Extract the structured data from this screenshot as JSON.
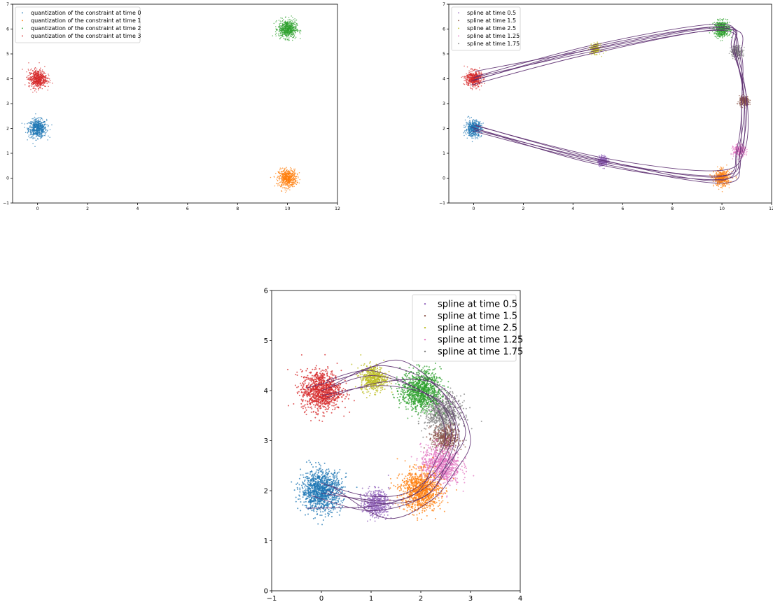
{
  "chart_data": [
    {
      "type": "scatter",
      "title": "",
      "xlabel": "",
      "ylabel": "",
      "xlim": [
        -1,
        12
      ],
      "ylim": [
        -1,
        7
      ],
      "xticks": [
        0,
        2,
        4,
        6,
        8,
        10,
        12
      ],
      "yticks": [
        -1,
        0,
        1,
        2,
        3,
        4,
        5,
        6,
        7
      ],
      "legend_position": "upper-left",
      "series": [
        {
          "name": "quantization of the constraint at time 0",
          "color": "#1f77b4",
          "center": [
            0,
            2
          ],
          "spread": 0.18,
          "count": 600
        },
        {
          "name": "quantization of the constraint at time 1",
          "color": "#ff7f0e",
          "center": [
            10,
            0
          ],
          "spread": 0.18,
          "count": 600
        },
        {
          "name": "quantization of the constraint at time 2",
          "color": "#2ca02c",
          "center": [
            10,
            6
          ],
          "spread": 0.18,
          "count": 600
        },
        {
          "name": "quantization of the constraint at time 3",
          "color": "#d62728",
          "center": [
            0,
            4
          ],
          "spread": 0.18,
          "count": 600
        }
      ],
      "splines": []
    },
    {
      "type": "scatter",
      "title": "",
      "xlabel": "",
      "ylabel": "",
      "xlim": [
        -1,
        12
      ],
      "ylim": [
        -1,
        7
      ],
      "xticks": [
        0,
        2,
        4,
        6,
        8,
        10,
        12
      ],
      "yticks": [
        -1,
        0,
        1,
        2,
        3,
        4,
        5,
        6,
        7
      ],
      "legend_position": "upper-left",
      "series": [
        {
          "name": "spline at time 0.5",
          "color": "#9467bd",
          "center": [
            5.2,
            0.7
          ],
          "spread": 0.1,
          "count": 300
        },
        {
          "name": "spline at time 1.5",
          "color": "#8c564b",
          "center": [
            10.9,
            3.1
          ],
          "spread": 0.1,
          "count": 300
        },
        {
          "name": "spline at time 2.5",
          "color": "#bcbd22",
          "center": [
            4.9,
            5.2
          ],
          "spread": 0.1,
          "count": 300
        },
        {
          "name": "spline at time 1.25",
          "color": "#e377c2",
          "center": [
            10.7,
            1.1
          ],
          "spread": 0.12,
          "count": 300
        },
        {
          "name": "spline at time 1.75",
          "color": "#7f7f7f",
          "center": [
            10.6,
            5.1
          ],
          "spread": 0.12,
          "count": 300
        },
        {
          "name": "",
          "color": "#1f77b4",
          "center": [
            0,
            2
          ],
          "spread": 0.16,
          "count": 500
        },
        {
          "name": "",
          "color": "#ff7f0e",
          "center": [
            10,
            0
          ],
          "spread": 0.16,
          "count": 500
        },
        {
          "name": "",
          "color": "#2ca02c",
          "center": [
            10,
            6
          ],
          "spread": 0.16,
          "count": 500
        },
        {
          "name": "",
          "color": "#d62728",
          "center": [
            0,
            4
          ],
          "spread": 0.16,
          "count": 500
        }
      ],
      "splines": [
        [
          [
            -0.1,
            2.05
          ],
          [
            5.0,
            0.55
          ],
          [
            10.0,
            -0.05
          ],
          [
            10.8,
            1.0
          ],
          [
            10.9,
            3.1
          ],
          [
            10.5,
            5.1
          ],
          [
            10.1,
            6.1
          ],
          [
            4.9,
            5.3
          ],
          [
            -0.1,
            3.9
          ]
        ],
        [
          [
            0.0,
            1.95
          ],
          [
            5.2,
            0.7
          ],
          [
            9.9,
            0.05
          ],
          [
            10.6,
            1.2
          ],
          [
            10.8,
            3.0
          ],
          [
            10.7,
            5.0
          ],
          [
            9.9,
            5.95
          ],
          [
            4.8,
            5.1
          ],
          [
            0.0,
            4.05
          ]
        ],
        [
          [
            0.1,
            2.1
          ],
          [
            5.3,
            0.8
          ],
          [
            9.8,
            0.3
          ],
          [
            10.9,
            1.1
          ],
          [
            11.0,
            3.2
          ],
          [
            10.4,
            5.2
          ],
          [
            10.0,
            6.2
          ],
          [
            5.0,
            5.4
          ],
          [
            0.1,
            4.1
          ]
        ],
        [
          [
            -0.05,
            1.9
          ],
          [
            5.1,
            0.6
          ],
          [
            10.1,
            -0.2
          ],
          [
            10.7,
            0.9
          ],
          [
            10.8,
            3.1
          ],
          [
            10.8,
            4.9
          ],
          [
            10.2,
            6.0
          ],
          [
            4.7,
            5.0
          ],
          [
            -0.1,
            3.75
          ]
        ],
        [
          [
            0.05,
            2.0
          ],
          [
            5.2,
            0.65
          ],
          [
            10.0,
            0.1
          ],
          [
            10.75,
            1.05
          ],
          [
            11.0,
            3.0
          ],
          [
            10.6,
            5.0
          ],
          [
            10.0,
            6.05
          ],
          [
            4.9,
            5.2
          ],
          [
            0.05,
            4.3
          ]
        ],
        [
          [
            0.0,
            2.15
          ],
          [
            5.1,
            0.75
          ],
          [
            9.9,
            -0.1
          ],
          [
            10.65,
            1.15
          ],
          [
            10.9,
            3.15
          ],
          [
            10.5,
            5.15
          ],
          [
            10.05,
            6.1
          ],
          [
            5.0,
            5.25
          ],
          [
            0.0,
            3.95
          ]
        ]
      ]
    },
    {
      "type": "scatter",
      "title": "",
      "xlabel": "",
      "ylabel": "",
      "xlim": [
        -1,
        4
      ],
      "ylim": [
        0,
        6
      ],
      "xticks": [
        -1,
        0,
        1,
        2,
        3,
        4
      ],
      "yticks": [
        0,
        1,
        2,
        3,
        4,
        5,
        6
      ],
      "legend_position": "upper-right",
      "series": [
        {
          "name": "spline at time 0.5",
          "color": "#9467bd",
          "center": [
            1.1,
            1.75
          ],
          "spread": 0.13,
          "count": 500
        },
        {
          "name": "spline at time 1.5",
          "color": "#8c564b",
          "center": [
            2.5,
            3.05
          ],
          "spread": 0.13,
          "count": 500
        },
        {
          "name": "spline at time 2.5",
          "color": "#bcbd22",
          "center": [
            1.05,
            4.25
          ],
          "spread": 0.13,
          "count": 500
        },
        {
          "name": "spline at time 1.25",
          "color": "#e377c2",
          "center": [
            2.4,
            2.5
          ],
          "spread": 0.2,
          "count": 800
        },
        {
          "name": "spline at time 1.75",
          "color": "#7f7f7f",
          "center": [
            2.45,
            3.55
          ],
          "spread": 0.18,
          "count": 700
        },
        {
          "name": "",
          "color": "#1f77b4",
          "center": [
            0,
            2
          ],
          "spread": 0.2,
          "count": 1100
        },
        {
          "name": "",
          "color": "#ff7f0e",
          "center": [
            2,
            2
          ],
          "spread": 0.2,
          "count": 1000
        },
        {
          "name": "",
          "color": "#2ca02c",
          "center": [
            2,
            4
          ],
          "spread": 0.2,
          "count": 1000
        },
        {
          "name": "",
          "color": "#d62728",
          "center": [
            0,
            4
          ],
          "spread": 0.2,
          "count": 1000
        }
      ],
      "splines": [
        [
          [
            -0.3,
            1.65
          ],
          [
            1.1,
            1.7
          ],
          [
            2.0,
            2.0
          ],
          [
            2.6,
            2.6
          ],
          [
            2.9,
            3.2
          ],
          [
            2.5,
            3.9
          ],
          [
            1.6,
            4.6
          ],
          [
            0.6,
            4.3
          ],
          [
            -0.3,
            4.05
          ]
        ],
        [
          [
            0.0,
            1.95
          ],
          [
            1.2,
            1.8
          ],
          [
            1.9,
            1.95
          ],
          [
            2.3,
            2.6
          ],
          [
            2.5,
            3.1
          ],
          [
            2.3,
            3.7
          ],
          [
            1.9,
            4.05
          ],
          [
            1.0,
            4.3
          ],
          [
            0.0,
            4.0
          ]
        ],
        [
          [
            0.2,
            2.1
          ],
          [
            1.3,
            1.45
          ],
          [
            2.2,
            1.8
          ],
          [
            2.7,
            2.4
          ],
          [
            3.0,
            3.0
          ],
          [
            2.7,
            3.8
          ],
          [
            2.1,
            4.2
          ],
          [
            1.1,
            4.15
          ],
          [
            0.1,
            3.85
          ]
        ],
        [
          [
            0.0,
            2.15
          ],
          [
            0.9,
            1.9
          ],
          [
            1.7,
            1.95
          ],
          [
            2.3,
            2.4
          ],
          [
            2.6,
            3.0
          ],
          [
            2.5,
            3.6
          ],
          [
            2.0,
            4.0
          ],
          [
            1.0,
            4.4
          ],
          [
            0.1,
            4.2
          ]
        ],
        [
          [
            -0.2,
            1.9
          ],
          [
            1.0,
            1.6
          ],
          [
            2.1,
            1.9
          ],
          [
            2.5,
            2.5
          ],
          [
            2.7,
            3.1
          ],
          [
            2.6,
            3.5
          ],
          [
            2.2,
            3.9
          ],
          [
            1.2,
            4.1
          ],
          [
            0.0,
            3.9
          ]
        ],
        [
          [
            0.1,
            2.0
          ],
          [
            1.1,
            1.75
          ],
          [
            2.0,
            1.85
          ],
          [
            2.45,
            2.3
          ],
          [
            2.75,
            2.9
          ],
          [
            2.7,
            3.4
          ],
          [
            2.3,
            4.1
          ],
          [
            1.2,
            4.5
          ],
          [
            0.2,
            4.1
          ]
        ]
      ]
    }
  ]
}
